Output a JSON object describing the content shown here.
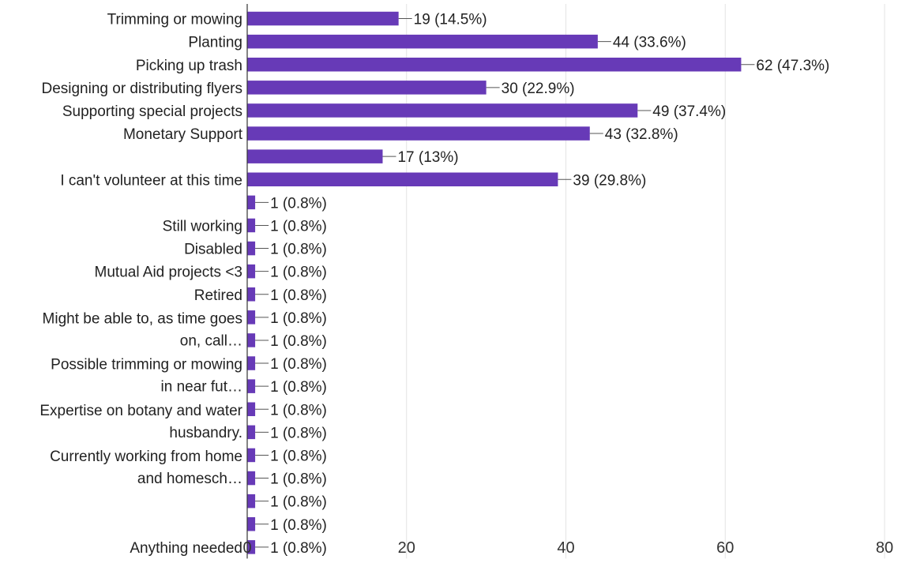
{
  "chart_data": {
    "type": "bar",
    "orientation": "horizontal",
    "categories": [
      "Trimming or mowing",
      "Planting",
      "Picking up trash",
      "Designing or distributing flyers",
      "Supporting special projects",
      "Monetary Support",
      "",
      "I can't volunteer at this time",
      "",
      "Still working",
      "Disabled",
      "Mutual Aid projects <3",
      "Retired",
      "",
      "",
      "",
      "",
      "",
      "",
      "",
      "",
      "",
      "",
      "Anything needed"
    ],
    "category_label_blocks": [
      {
        "first": 13,
        "last": 14,
        "lines": [
          "Might be able to, as time goes",
          "on, call…"
        ]
      },
      {
        "first": 15,
        "last": 16,
        "lines": [
          "Possible trimming or mowing",
          "in near fut…"
        ]
      },
      {
        "first": 17,
        "last": 18,
        "lines": [
          "Expertise on botany and water",
          "husbandry."
        ]
      },
      {
        "first": 19,
        "last": 20,
        "lines": [
          "Currently working from home",
          "and homesch…"
        ]
      }
    ],
    "values": [
      19,
      44,
      62,
      30,
      49,
      43,
      17,
      39,
      1,
      1,
      1,
      1,
      1,
      1,
      1,
      1,
      1,
      1,
      1,
      1,
      1,
      1,
      1,
      1
    ],
    "data_labels": [
      "19 (14.5%)",
      "44 (33.6%)",
      "62 (47.3%)",
      "30 (22.9%)",
      "49 (37.4%)",
      "43 (32.8%)",
      "17 (13%)",
      "39 (29.8%)",
      "1 (0.8%)",
      "1 (0.8%)",
      "1 (0.8%)",
      "1 (0.8%)",
      "1 (0.8%)",
      "1 (0.8%)",
      "1 (0.8%)",
      "1 (0.8%)",
      "1 (0.8%)",
      "1 (0.8%)",
      "1 (0.8%)",
      "1 (0.8%)",
      "1 (0.8%)",
      "1 (0.8%)",
      "1 (0.8%)",
      "1 (0.8%)"
    ],
    "x_ticks": [
      "0",
      "20",
      "40",
      "60",
      "80"
    ],
    "xlim": [
      0,
      80
    ],
    "grid": true,
    "bar_color": "#673ab7",
    "title": "",
    "xlabel": "",
    "ylabel": ""
  }
}
